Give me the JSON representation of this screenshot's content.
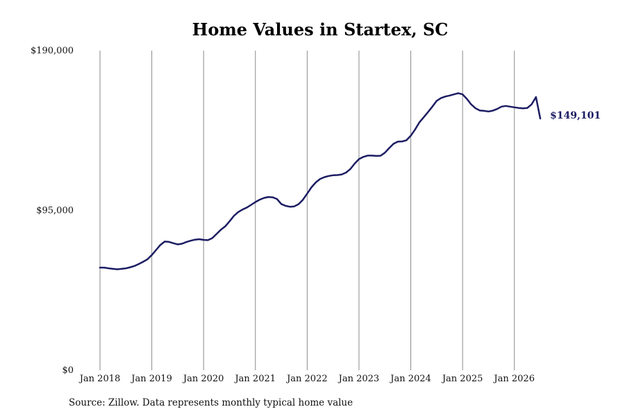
{
  "chart_data": {
    "type": "line",
    "title": "Home Values in Startex, SC",
    "y_ticks": [
      "$0",
      "$95,000",
      "$190,000"
    ],
    "y_tick_values": [
      0,
      95000,
      190000
    ],
    "ylim": [
      0,
      190000
    ],
    "x_ticks": [
      "Jan 2018",
      "Jan 2019",
      "Jan 2020",
      "Jan 2021",
      "Jan 2022",
      "Jan 2023",
      "Jan 2024",
      "Jan 2025",
      "Jan 2026"
    ],
    "x_tick_values": [
      "2018-01",
      "2019-01",
      "2020-01",
      "2021-01",
      "2022-01",
      "2023-01",
      "2024-01",
      "2025-01",
      "2026-01"
    ],
    "xlim": [
      "2018-01",
      "2026-07"
    ],
    "grid": "vertical",
    "line_color": "#1c1c63",
    "last_value_label": "$149,101",
    "series": [
      {
        "values": [
          [
            "2018-01",
            61000
          ],
          [
            "2018-02",
            61000
          ],
          [
            "2018-03",
            60600
          ],
          [
            "2018-04",
            60300
          ],
          [
            "2018-05",
            60000
          ],
          [
            "2018-06",
            60300
          ],
          [
            "2018-07",
            60600
          ],
          [
            "2018-08",
            61200
          ],
          [
            "2018-09",
            62000
          ],
          [
            "2018-10",
            63200
          ],
          [
            "2018-11",
            64500
          ],
          [
            "2018-12",
            66000
          ],
          [
            "2019-01",
            68500
          ],
          [
            "2019-02",
            71500
          ],
          [
            "2019-03",
            74500
          ],
          [
            "2019-04",
            76500
          ],
          [
            "2019-05",
            76300
          ],
          [
            "2019-06",
            75500
          ],
          [
            "2019-07",
            74800
          ],
          [
            "2019-08",
            75200
          ],
          [
            "2019-09",
            76200
          ],
          [
            "2019-10",
            77000
          ],
          [
            "2019-11",
            77600
          ],
          [
            "2019-12",
            77900
          ],
          [
            "2020-01",
            77500
          ],
          [
            "2020-02",
            77300
          ],
          [
            "2020-03",
            78500
          ],
          [
            "2020-04",
            81000
          ],
          [
            "2020-05",
            83500
          ],
          [
            "2020-06",
            85500
          ],
          [
            "2020-07",
            88500
          ],
          [
            "2020-08",
            91700
          ],
          [
            "2020-09",
            94000
          ],
          [
            "2020-10",
            95500
          ],
          [
            "2020-11",
            96700
          ],
          [
            "2020-12",
            98300
          ],
          [
            "2021-01",
            100000
          ],
          [
            "2021-02",
            101400
          ],
          [
            "2021-03",
            102400
          ],
          [
            "2021-04",
            103000
          ],
          [
            "2021-05",
            102800
          ],
          [
            "2021-06",
            101800
          ],
          [
            "2021-07",
            98800
          ],
          [
            "2021-08",
            97700
          ],
          [
            "2021-09",
            97200
          ],
          [
            "2021-10",
            97400
          ],
          [
            "2021-11",
            98700
          ],
          [
            "2021-12",
            101300
          ],
          [
            "2022-01",
            105000
          ],
          [
            "2022-02",
            108800
          ],
          [
            "2022-03",
            111700
          ],
          [
            "2022-04",
            113700
          ],
          [
            "2022-05",
            114800
          ],
          [
            "2022-06",
            115500
          ],
          [
            "2022-07",
            115900
          ],
          [
            "2022-08",
            116000
          ],
          [
            "2022-09",
            116400
          ],
          [
            "2022-10",
            117500
          ],
          [
            "2022-11",
            119600
          ],
          [
            "2022-12",
            122800
          ],
          [
            "2023-01",
            125500
          ],
          [
            "2023-02",
            126800
          ],
          [
            "2023-03",
            127600
          ],
          [
            "2023-04",
            127600
          ],
          [
            "2023-05",
            127400
          ],
          [
            "2023-06",
            127500
          ],
          [
            "2023-07",
            129300
          ],
          [
            "2023-08",
            132100
          ],
          [
            "2023-09",
            134600
          ],
          [
            "2023-10",
            135900
          ],
          [
            "2023-11",
            136000
          ],
          [
            "2023-12",
            136700
          ],
          [
            "2024-01",
            139400
          ],
          [
            "2024-02",
            143100
          ],
          [
            "2024-03",
            147400
          ],
          [
            "2024-04",
            150400
          ],
          [
            "2024-05",
            153500
          ],
          [
            "2024-06",
            156700
          ],
          [
            "2024-07",
            160100
          ],
          [
            "2024-08",
            161800
          ],
          [
            "2024-09",
            162700
          ],
          [
            "2024-10",
            163300
          ],
          [
            "2024-11",
            164000
          ],
          [
            "2024-12",
            164700
          ],
          [
            "2025-01",
            164000
          ],
          [
            "2025-02",
            161300
          ],
          [
            "2025-03",
            158000
          ],
          [
            "2025-04",
            155700
          ],
          [
            "2025-05",
            154400
          ],
          [
            "2025-06",
            154200
          ],
          [
            "2025-07",
            153800
          ],
          [
            "2025-08",
            154300
          ],
          [
            "2025-09",
            155300
          ],
          [
            "2025-10",
            156700
          ],
          [
            "2025-11",
            157100
          ],
          [
            "2025-12",
            156700
          ],
          [
            "2026-01",
            156300
          ],
          [
            "2026-02",
            155900
          ],
          [
            "2026-03",
            155700
          ],
          [
            "2026-04",
            155900
          ],
          [
            "2026-05",
            158100
          ],
          [
            "2026-06",
            162400
          ],
          [
            "2026-07",
            149101
          ]
        ]
      }
    ]
  },
  "source_text": "Source: Zillow. Data represents monthly typical home value"
}
